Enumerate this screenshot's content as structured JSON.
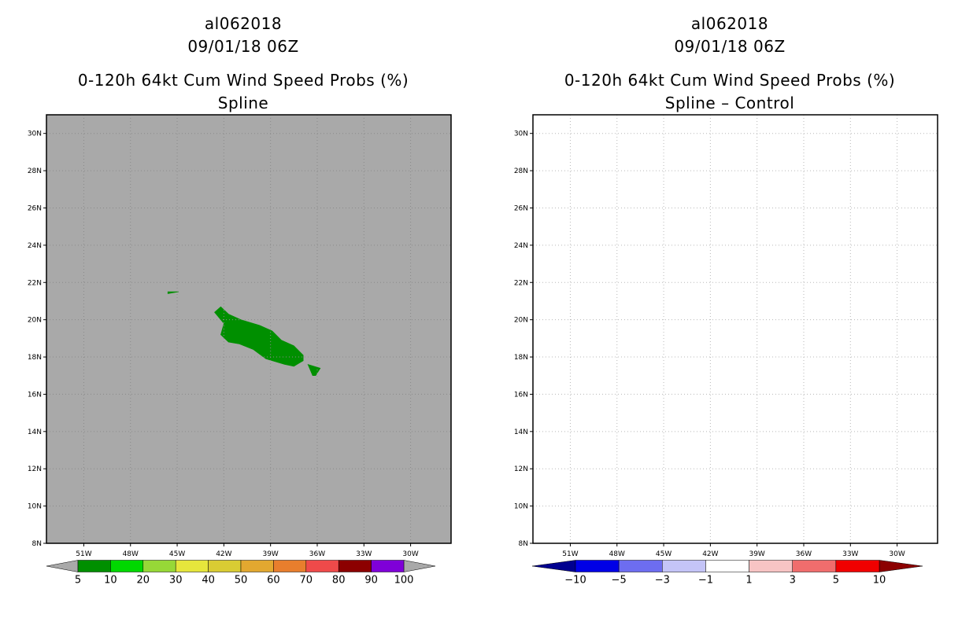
{
  "panels": [
    {
      "storm_id": "al062018",
      "datetime": "09/01/18 06Z",
      "title": "0-120h 64kt Cum Wind Speed Probs (%)",
      "subtitle": "Spline",
      "background": "#a9a9a9"
    },
    {
      "storm_id": "al062018",
      "datetime": "09/01/18 06Z",
      "title": "0-120h 64kt Cum Wind Speed Probs (%)",
      "subtitle": "Spline – Control",
      "background": "#ffffff"
    }
  ],
  "chart_data": [
    {
      "type": "heatmap",
      "title": "0-120h 64kt Cum Wind Speed Probs (%)",
      "subtitle": "Spline",
      "x_ticks": [
        "51W",
        "48W",
        "45W",
        "42W",
        "39W",
        "36W",
        "33W",
        "30W"
      ],
      "y_ticks": [
        "8N",
        "10N",
        "12N",
        "14N",
        "16N",
        "18N",
        "20N",
        "22N",
        "24N",
        "26N",
        "28N",
        "30N"
      ],
      "xlim_lon": [
        -53.4,
        -27.4
      ],
      "ylim_lat": [
        8,
        31
      ],
      "grid": true,
      "colorbar": {
        "levels": [
          "5",
          "10",
          "20",
          "30",
          "40",
          "50",
          "60",
          "70",
          "80",
          "90",
          "100"
        ],
        "colors": [
          "#008f00",
          "#00d800",
          "#97d837",
          "#e6e63c",
          "#d9cc33",
          "#e2a830",
          "#e87e2d",
          "#ef4a4a",
          "#8c0000",
          "#7f00d8"
        ]
      },
      "regions": [
        {
          "category": "5-10",
          "color": "#008f00",
          "polygon_lonlat": [
            [
              -42.2,
              20.7
            ],
            [
              -41.7,
              20.3
            ],
            [
              -40.9,
              20.0
            ],
            [
              -39.7,
              19.7
            ],
            [
              -38.9,
              19.4
            ],
            [
              -38.3,
              18.9
            ],
            [
              -37.5,
              18.6
            ],
            [
              -36.9,
              18.1
            ],
            [
              -36.9,
              17.8
            ],
            [
              -37.5,
              17.5
            ],
            [
              -38.1,
              17.6
            ],
            [
              -39.3,
              17.9
            ],
            [
              -40.1,
              18.4
            ],
            [
              -41.0,
              18.7
            ],
            [
              -41.7,
              18.8
            ],
            [
              -42.2,
              19.2
            ],
            [
              -42.0,
              19.8
            ],
            [
              -42.6,
              20.4
            ]
          ]
        },
        {
          "category": "5-10",
          "color": "#008f00",
          "polygon_lonlat": [
            [
              -35.8,
              17.4
            ],
            [
              -36.6,
              17.6
            ],
            [
              -36.3,
              17.0
            ],
            [
              -36.1,
              17.0
            ]
          ]
        },
        {
          "category": "5-10",
          "color": "#008f00",
          "polygon_lonlat": [
            [
              -45.6,
              21.5
            ],
            [
              -44.9,
              21.5
            ],
            [
              -45.6,
              21.4
            ]
          ]
        }
      ]
    },
    {
      "type": "heatmap",
      "title": "0-120h 64kt Cum Wind Speed Probs (%)",
      "subtitle": "Spline – Control",
      "x_ticks": [
        "51W",
        "48W",
        "45W",
        "42W",
        "39W",
        "36W",
        "33W",
        "30W"
      ],
      "y_ticks": [
        "8N",
        "10N",
        "12N",
        "14N",
        "16N",
        "18N",
        "20N",
        "22N",
        "24N",
        "26N",
        "28N",
        "30N"
      ],
      "xlim_lon": [
        -53.4,
        -27.4
      ],
      "ylim_lat": [
        8,
        31
      ],
      "grid": true,
      "colorbar": {
        "levels": [
          "−10",
          "−5",
          "−3",
          "−1",
          "1",
          "3",
          "5",
          "10"
        ],
        "colors": [
          "#00008f",
          "#0000e6",
          "#6d6df0",
          "#c4c4f7",
          "#ffffff",
          "#f7c4c4",
          "#f06d6d",
          "#f00000",
          "#8c0000"
        ]
      },
      "regions": []
    }
  ]
}
